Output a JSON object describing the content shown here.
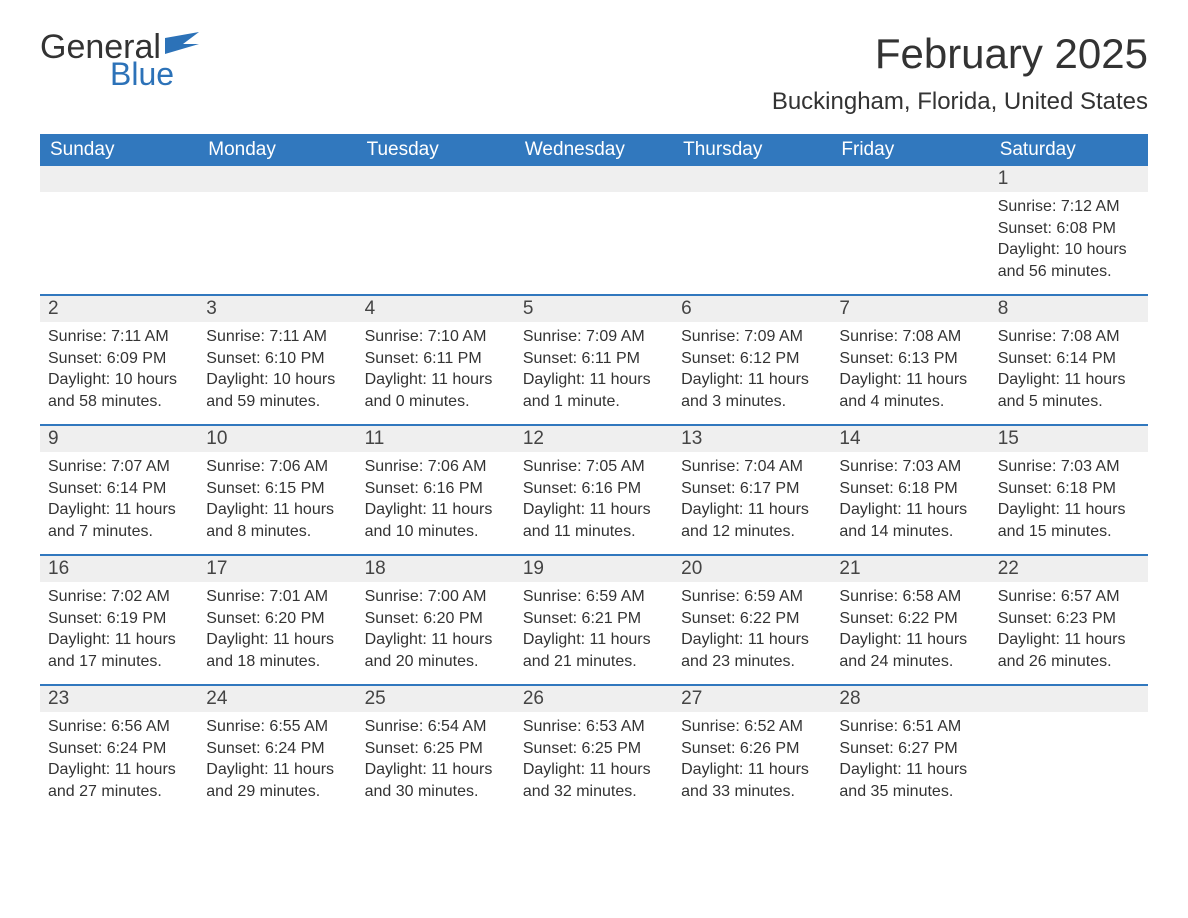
{
  "brand": {
    "general": "General",
    "blue": "Blue",
    "flag_color": "#2c72b8"
  },
  "title": "February 2025",
  "location": "Buckingham, Florida, United States",
  "colors": {
    "header_bg": "#3178be",
    "header_text": "#ffffff",
    "daynum_bg": "#efefef",
    "week_border": "#3178be",
    "text": "#333333",
    "background": "#ffffff"
  },
  "typography": {
    "title_fontsize": 42,
    "location_fontsize": 24,
    "dow_fontsize": 19,
    "body_fontsize": 16
  },
  "days_of_week": [
    "Sunday",
    "Monday",
    "Tuesday",
    "Wednesday",
    "Thursday",
    "Friday",
    "Saturday"
  ],
  "weeks": [
    [
      {
        "n": "",
        "sunrise": "",
        "sunset": "",
        "daylight": ""
      },
      {
        "n": "",
        "sunrise": "",
        "sunset": "",
        "daylight": ""
      },
      {
        "n": "",
        "sunrise": "",
        "sunset": "",
        "daylight": ""
      },
      {
        "n": "",
        "sunrise": "",
        "sunset": "",
        "daylight": ""
      },
      {
        "n": "",
        "sunrise": "",
        "sunset": "",
        "daylight": ""
      },
      {
        "n": "",
        "sunrise": "",
        "sunset": "",
        "daylight": ""
      },
      {
        "n": "1",
        "sunrise": "Sunrise: 7:12 AM",
        "sunset": "Sunset: 6:08 PM",
        "daylight": "Daylight: 10 hours and 56 minutes."
      }
    ],
    [
      {
        "n": "2",
        "sunrise": "Sunrise: 7:11 AM",
        "sunset": "Sunset: 6:09 PM",
        "daylight": "Daylight: 10 hours and 58 minutes."
      },
      {
        "n": "3",
        "sunrise": "Sunrise: 7:11 AM",
        "sunset": "Sunset: 6:10 PM",
        "daylight": "Daylight: 10 hours and 59 minutes."
      },
      {
        "n": "4",
        "sunrise": "Sunrise: 7:10 AM",
        "sunset": "Sunset: 6:11 PM",
        "daylight": "Daylight: 11 hours and 0 minutes."
      },
      {
        "n": "5",
        "sunrise": "Sunrise: 7:09 AM",
        "sunset": "Sunset: 6:11 PM",
        "daylight": "Daylight: 11 hours and 1 minute."
      },
      {
        "n": "6",
        "sunrise": "Sunrise: 7:09 AM",
        "sunset": "Sunset: 6:12 PM",
        "daylight": "Daylight: 11 hours and 3 minutes."
      },
      {
        "n": "7",
        "sunrise": "Sunrise: 7:08 AM",
        "sunset": "Sunset: 6:13 PM",
        "daylight": "Daylight: 11 hours and 4 minutes."
      },
      {
        "n": "8",
        "sunrise": "Sunrise: 7:08 AM",
        "sunset": "Sunset: 6:14 PM",
        "daylight": "Daylight: 11 hours and 5 minutes."
      }
    ],
    [
      {
        "n": "9",
        "sunrise": "Sunrise: 7:07 AM",
        "sunset": "Sunset: 6:14 PM",
        "daylight": "Daylight: 11 hours and 7 minutes."
      },
      {
        "n": "10",
        "sunrise": "Sunrise: 7:06 AM",
        "sunset": "Sunset: 6:15 PM",
        "daylight": "Daylight: 11 hours and 8 minutes."
      },
      {
        "n": "11",
        "sunrise": "Sunrise: 7:06 AM",
        "sunset": "Sunset: 6:16 PM",
        "daylight": "Daylight: 11 hours and 10 minutes."
      },
      {
        "n": "12",
        "sunrise": "Sunrise: 7:05 AM",
        "sunset": "Sunset: 6:16 PM",
        "daylight": "Daylight: 11 hours and 11 minutes."
      },
      {
        "n": "13",
        "sunrise": "Sunrise: 7:04 AM",
        "sunset": "Sunset: 6:17 PM",
        "daylight": "Daylight: 11 hours and 12 minutes."
      },
      {
        "n": "14",
        "sunrise": "Sunrise: 7:03 AM",
        "sunset": "Sunset: 6:18 PM",
        "daylight": "Daylight: 11 hours and 14 minutes."
      },
      {
        "n": "15",
        "sunrise": "Sunrise: 7:03 AM",
        "sunset": "Sunset: 6:18 PM",
        "daylight": "Daylight: 11 hours and 15 minutes."
      }
    ],
    [
      {
        "n": "16",
        "sunrise": "Sunrise: 7:02 AM",
        "sunset": "Sunset: 6:19 PM",
        "daylight": "Daylight: 11 hours and 17 minutes."
      },
      {
        "n": "17",
        "sunrise": "Sunrise: 7:01 AM",
        "sunset": "Sunset: 6:20 PM",
        "daylight": "Daylight: 11 hours and 18 minutes."
      },
      {
        "n": "18",
        "sunrise": "Sunrise: 7:00 AM",
        "sunset": "Sunset: 6:20 PM",
        "daylight": "Daylight: 11 hours and 20 minutes."
      },
      {
        "n": "19",
        "sunrise": "Sunrise: 6:59 AM",
        "sunset": "Sunset: 6:21 PM",
        "daylight": "Daylight: 11 hours and 21 minutes."
      },
      {
        "n": "20",
        "sunrise": "Sunrise: 6:59 AM",
        "sunset": "Sunset: 6:22 PM",
        "daylight": "Daylight: 11 hours and 23 minutes."
      },
      {
        "n": "21",
        "sunrise": "Sunrise: 6:58 AM",
        "sunset": "Sunset: 6:22 PM",
        "daylight": "Daylight: 11 hours and 24 minutes."
      },
      {
        "n": "22",
        "sunrise": "Sunrise: 6:57 AM",
        "sunset": "Sunset: 6:23 PM",
        "daylight": "Daylight: 11 hours and 26 minutes."
      }
    ],
    [
      {
        "n": "23",
        "sunrise": "Sunrise: 6:56 AM",
        "sunset": "Sunset: 6:24 PM",
        "daylight": "Daylight: 11 hours and 27 minutes."
      },
      {
        "n": "24",
        "sunrise": "Sunrise: 6:55 AM",
        "sunset": "Sunset: 6:24 PM",
        "daylight": "Daylight: 11 hours and 29 minutes."
      },
      {
        "n": "25",
        "sunrise": "Sunrise: 6:54 AM",
        "sunset": "Sunset: 6:25 PM",
        "daylight": "Daylight: 11 hours and 30 minutes."
      },
      {
        "n": "26",
        "sunrise": "Sunrise: 6:53 AM",
        "sunset": "Sunset: 6:25 PM",
        "daylight": "Daylight: 11 hours and 32 minutes."
      },
      {
        "n": "27",
        "sunrise": "Sunrise: 6:52 AM",
        "sunset": "Sunset: 6:26 PM",
        "daylight": "Daylight: 11 hours and 33 minutes."
      },
      {
        "n": "28",
        "sunrise": "Sunrise: 6:51 AM",
        "sunset": "Sunset: 6:27 PM",
        "daylight": "Daylight: 11 hours and 35 minutes."
      },
      {
        "n": "",
        "sunrise": "",
        "sunset": "",
        "daylight": ""
      }
    ]
  ]
}
